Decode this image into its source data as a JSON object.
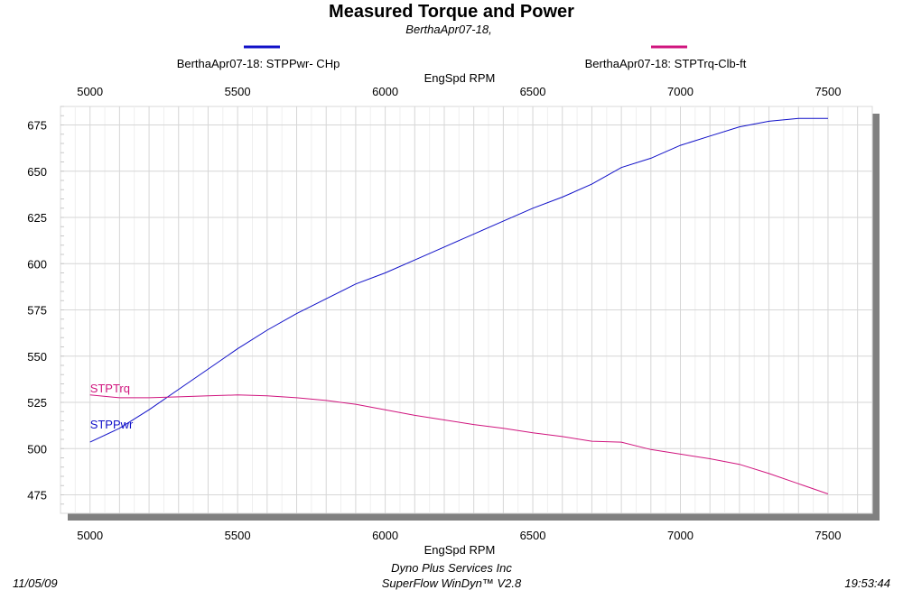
{
  "chart_data": {
    "type": "line",
    "title": "Measured Torque and Power",
    "subtitle": "BerthaApr07-18,",
    "xlabel": "EngSpd  RPM",
    "xlim": [
      4900,
      7650
    ],
    "ylim": [
      465,
      685
    ],
    "x_ticks": [
      5000,
      5500,
      6000,
      6500,
      7000,
      7500
    ],
    "y_ticks": [
      475,
      500,
      525,
      550,
      575,
      600,
      625,
      650,
      675
    ],
    "grid": true,
    "legend_position": "top",
    "x": [
      5000,
      5100,
      5200,
      5300,
      5400,
      5500,
      5600,
      5700,
      5800,
      5900,
      6000,
      6100,
      6200,
      6300,
      6400,
      6500,
      6600,
      6700,
      6800,
      6900,
      7000,
      7100,
      7200,
      7300,
      7400,
      7500
    ],
    "series": [
      {
        "name": "BerthaApr07-18: STPPwr- CHp",
        "label": "STPPwr",
        "color": "#1010c8",
        "values": [
          503.5,
          511,
          521,
          532,
          543,
          554,
          564,
          573,
          581,
          589,
          595,
          602,
          609,
          616,
          623,
          630,
          636,
          643,
          652,
          657,
          664,
          669,
          674,
          677,
          678.5,
          678.5
        ]
      },
      {
        "name": "BerthaApr07-18: STPTrq-Clb-ft",
        "label": "STPTrq",
        "color": "#d0157e",
        "values": [
          529,
          527.5,
          527.5,
          528,
          528.5,
          529,
          528.5,
          527.5,
          526,
          524,
          521,
          518,
          515.5,
          513,
          511,
          508.5,
          506.5,
          504,
          503.5,
          499.5,
          497,
          494.5,
          491.5,
          486.5,
          481,
          475.5
        ]
      }
    ]
  },
  "footer": {
    "date": "11/05/09",
    "company": "Dyno Plus Services Inc",
    "software": "SuperFlow WinDyn™ V2.8",
    "time": "19:53:44"
  }
}
